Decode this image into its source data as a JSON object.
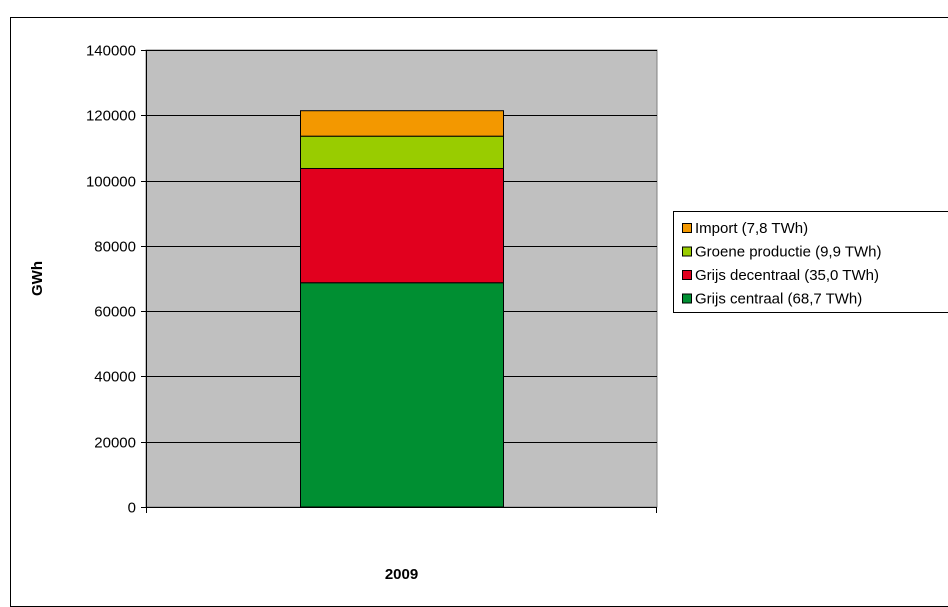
{
  "chart_data": {
    "type": "bar",
    "stacked": true,
    "categories": [
      "2009"
    ],
    "series": [
      {
        "name": "Grijs centraal (68,7 TWh)",
        "values": [
          68700
        ],
        "color": "#008f32"
      },
      {
        "name": "Grijs decentraal (35,0 TWh)",
        "values": [
          35000
        ],
        "color": "#e1001e"
      },
      {
        "name": "Groene productie (9,9 TWh)",
        "values": [
          9900
        ],
        "color": "#99cc00"
      },
      {
        "name": "Import (7,8 TWh)",
        "values": [
          7800
        ],
        "color": "#f39800"
      }
    ],
    "title": "",
    "xlabel": "2009",
    "ylabel": "GWh",
    "ylim": [
      0,
      140000
    ],
    "yticks": [
      0,
      20000,
      40000,
      60000,
      80000,
      100000,
      120000,
      140000
    ],
    "grid": true,
    "legend_position": "right",
    "plot_background": "#c0c0c0"
  }
}
